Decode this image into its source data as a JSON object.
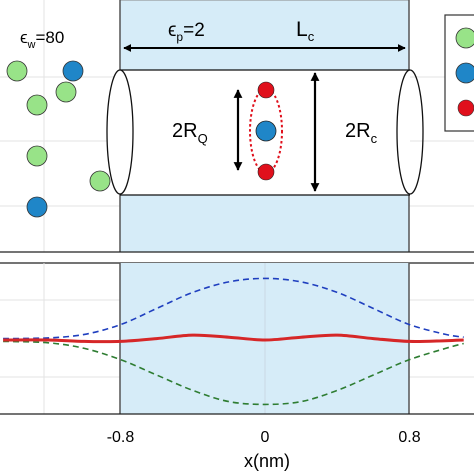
{
  "top_panel": {
    "eps_w_label": "ϵ",
    "eps_w_sub": "w",
    "eps_w_value": "=80",
    "eps_p_label": "ϵ",
    "eps_p_sub": "p",
    "eps_p_value": "=2",
    "lc_label": "L",
    "lc_sub": "c",
    "rq_label": "2R",
    "rq_sub": "Q",
    "rc_label": "2R",
    "rc_sub": "c"
  },
  "chart_data": {
    "type": "line",
    "xlabel": "x(nm)",
    "xticks": [
      "-0.8",
      "0",
      "0.8"
    ],
    "xlim": [
      -1.45,
      1.1
    ],
    "ylim": [
      -1,
      1
    ],
    "shaded_region": [
      -0.8,
      0.8
    ],
    "series": [
      {
        "color": "#1f3fbf",
        "dash": "dashed",
        "x": [
          -1.45,
          -1.2,
          -1.0,
          -0.8,
          -0.6,
          -0.4,
          -0.2,
          0,
          0.2,
          0.4,
          0.6,
          0.8,
          1.0,
          1.1
        ],
        "y": [
          0.02,
          0.03,
          0.08,
          0.22,
          0.45,
          0.68,
          0.83,
          0.88,
          0.83,
          0.68,
          0.45,
          0.22,
          0.08,
          0.04
        ]
      },
      {
        "color": "#2e7d32",
        "dash": "dashed",
        "x": [
          -1.45,
          -1.2,
          -1.0,
          -0.8,
          -0.6,
          -0.4,
          -0.2,
          0,
          0.2,
          0.4,
          0.6,
          0.8,
          1.0,
          1.1
        ],
        "y": [
          -0.02,
          -0.04,
          -0.12,
          -0.28,
          -0.5,
          -0.72,
          -0.88,
          -0.92,
          -0.88,
          -0.72,
          -0.5,
          -0.28,
          -0.12,
          -0.05
        ]
      },
      {
        "color": "#d62728",
        "dash": "solid",
        "x": [
          -1.45,
          -1.2,
          -1.0,
          -0.8,
          -0.6,
          -0.4,
          -0.2,
          0,
          0.2,
          0.4,
          0.6,
          0.8,
          1.0,
          1.1
        ],
        "y": [
          0.0,
          0.0,
          -0.02,
          -0.02,
          0.02,
          0.07,
          0.04,
          0.0,
          0.04,
          0.07,
          0.02,
          -0.02,
          -0.01,
          0.0
        ]
      }
    ]
  },
  "colors": {
    "water_bead": "#98e388",
    "ion_blue": "#1f86c8",
    "charge_red": "#e0101c",
    "shade": "#d6ecf8",
    "shade_border": "#888888"
  }
}
